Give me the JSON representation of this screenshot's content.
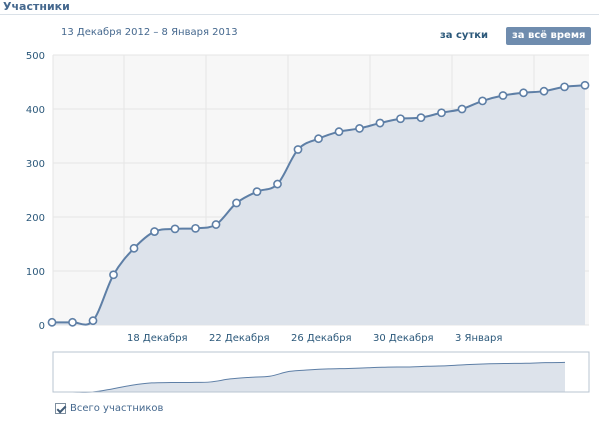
{
  "panel": {
    "title": "Участники",
    "date_range": "13 Декабря 2012 – 8 Января 2013"
  },
  "period_tabs": [
    {
      "label": "за сутки",
      "selected": false
    },
    {
      "label": "за всё время",
      "selected": true
    }
  ],
  "legend": {
    "label": "Всего участников",
    "checked": true
  },
  "colors": {
    "line": "#5e7fa6",
    "fill": "#dde3eb",
    "plot_bg": "#f7f7f7",
    "grid": "#e5e5e5",
    "axis_text": "#2b587a",
    "selected_tab_bg": "#6f8cae"
  },
  "chart_data": {
    "type": "area",
    "title": "",
    "xlabel": "",
    "ylabel": "",
    "x_tick_labels": [
      "18 Декабря",
      "22 Декабря",
      "26 Декабря",
      "30 Декабря",
      "3 Января"
    ],
    "ylim": [
      0,
      500
    ],
    "y_ticks": [
      0,
      100,
      200,
      300,
      400,
      500
    ],
    "grid": true,
    "series": [
      {
        "values": [
          5,
          5,
          8,
          93,
          142,
          173,
          178,
          179,
          186,
          226,
          247,
          261,
          325,
          345,
          358,
          364,
          374,
          382,
          384,
          393,
          400,
          415,
          425,
          430,
          433,
          441,
          444
        ]
      }
    ]
  }
}
